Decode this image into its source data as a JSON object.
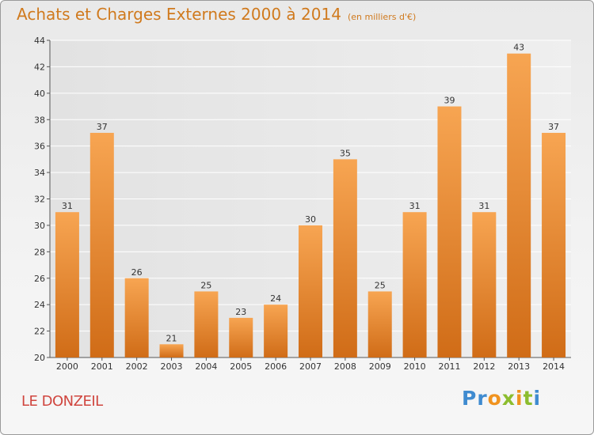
{
  "chart_data": {
    "type": "bar",
    "title": "Achats et Charges Externes 2000 à 2014",
    "subtitle": "(en milliers d'€)",
    "categories": [
      "2000",
      "2001",
      "2002",
      "2003",
      "2004",
      "2005",
      "2006",
      "2007",
      "2008",
      "2009",
      "2010",
      "2011",
      "2012",
      "2013",
      "2014"
    ],
    "values": [
      31,
      37,
      26,
      21,
      25,
      23,
      24,
      30,
      35,
      25,
      31,
      39,
      31,
      43,
      37
    ],
    "ylim": [
      20,
      44
    ],
    "yticks": [
      20,
      22,
      24,
      26,
      28,
      30,
      32,
      34,
      36,
      38,
      40,
      42,
      44
    ],
    "grid": true,
    "bar_color": "#e9852a"
  },
  "location": "LE DONZEIL",
  "brand": {
    "part1": "Pr",
    "part2": "o",
    "part3": "x",
    "part4": "i",
    "part5": "t",
    "part6": "i"
  }
}
